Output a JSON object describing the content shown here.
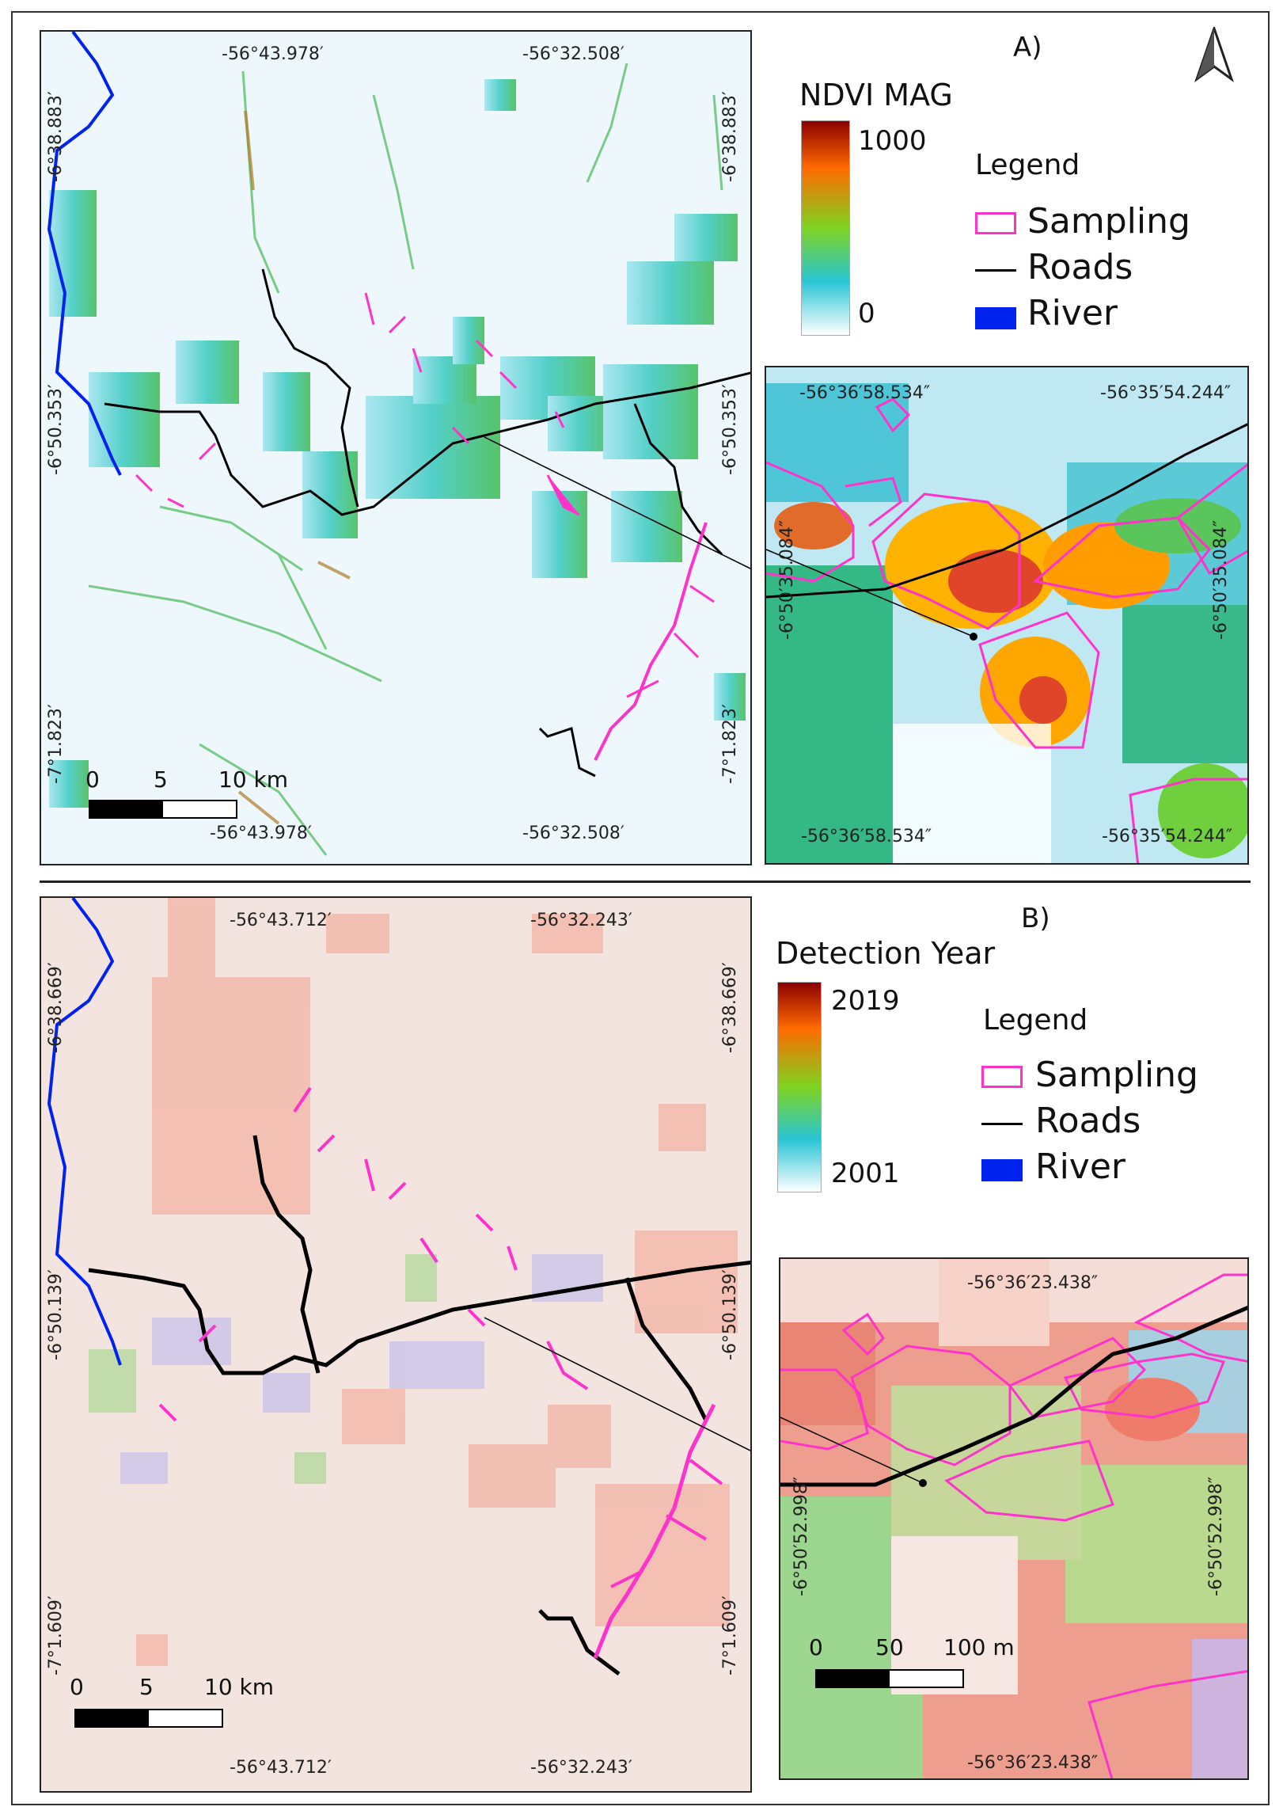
{
  "panel_a": {
    "label": "A)",
    "top_lon_1": "-56°43.978′",
    "top_lon_2": "-56°32.508′",
    "bottom_lon_1": "-56°43.978′",
    "bottom_lon_2": "-56°32.508′",
    "lat_1": "-6°38.883′",
    "lat_2": "-6°50.353′",
    "lat_3": "-7°1.823′",
    "ramp_title": "NDVI MAG",
    "ramp_max": "1000",
    "ramp_min": "0",
    "scale": [
      "0",
      "5",
      "10 km"
    ],
    "inset": {
      "top_lon": "-56°36′58.534″",
      "top_lon_2": "-56°35′54.244″",
      "bottom_lon": "-56°36′58.534″",
      "bottom_lon_2": "-56°35′54.244″",
      "lat": "-6°50′35.084″"
    }
  },
  "panel_b": {
    "label": "B)",
    "top_lon_1": "-56°43.712′",
    "top_lon_2": "-56°32.243′",
    "bottom_lon_1": "-56°43.712′",
    "bottom_lon_2": "-56°32.243′",
    "lat_1": "-6°38.669′",
    "lat_2": "-6°50.139′",
    "lat_3": "-7°1.609′",
    "ramp_title": "Detection Year",
    "ramp_max": "2019",
    "ramp_min": "2001",
    "scale": [
      "0",
      "5",
      "10 km"
    ],
    "inset": {
      "top_lon": "-56°36′23.438″",
      "bottom_lon": "-56°36′23.438″",
      "lat": "-6°50′52.998″",
      "scale": [
        "0",
        "50",
        "100 m"
      ]
    }
  },
  "legend": {
    "title": "Legend",
    "sampling": "Sampling",
    "roads": "Roads",
    "river": "River"
  },
  "colors": {
    "sampling": "#ff33cc",
    "roads": "#000000",
    "river": "#0022ee"
  },
  "icons": {
    "north_arrow": "north-arrow-icon"
  }
}
